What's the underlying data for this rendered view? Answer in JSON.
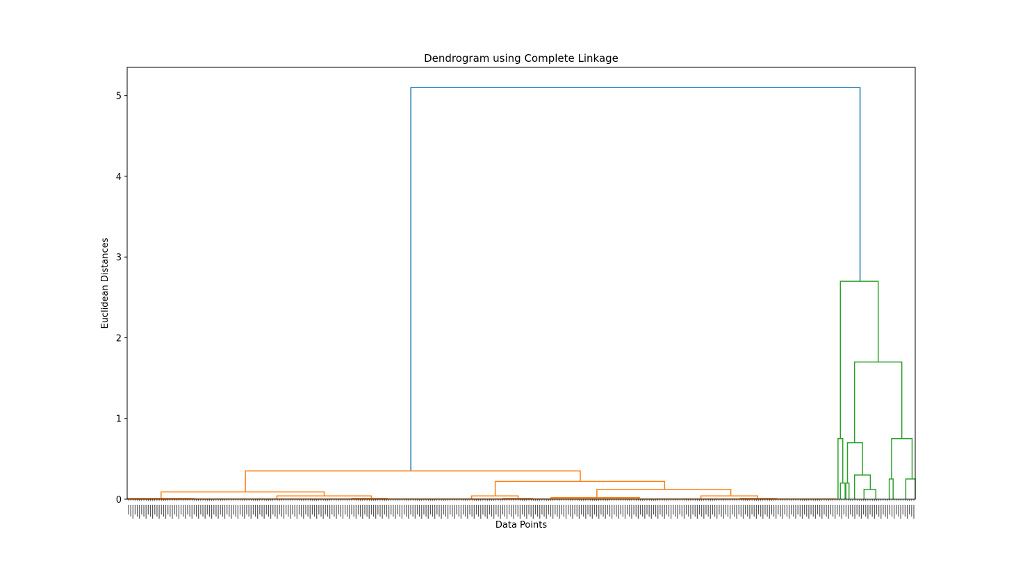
{
  "chart_data": {
    "type": "dendrogram",
    "title": "Dendrogram using Complete Linkage",
    "xlabel": "Data Points",
    "ylabel": "Euclidean Distances",
    "ylim": [
      0,
      5.35
    ],
    "yticks": [
      0,
      1,
      2,
      3,
      4,
      5
    ],
    "grid": false,
    "colors": {
      "above_threshold": "#1f77b4",
      "cluster_1": "#ff7f0e",
      "cluster_2": "#2ca02c"
    },
    "leaf_labels_legible": false,
    "links": [
      {
        "x": [
          0.36,
          0.36,
          0.93,
          0.93
        ],
        "y": [
          0.35,
          5.1,
          5.1,
          2.7
        ],
        "color": "#1f77b4"
      },
      {
        "x": [
          0.15,
          0.15,
          0.575,
          0.575
        ],
        "y": [
          0.09,
          0.35,
          0.35,
          0.22
        ],
        "color": "#ff7f0e"
      },
      {
        "x": [
          0.043,
          0.043,
          0.25,
          0.25
        ],
        "y": [
          0.01,
          0.09,
          0.09,
          0.04
        ],
        "color": "#ff7f0e"
      },
      {
        "x": [
          0.0,
          0.0,
          0.085,
          0.085
        ],
        "y": [
          0.0,
          0.01,
          0.01,
          0.0
        ],
        "color": "#ff7f0e"
      },
      {
        "x": [
          0.19,
          0.19,
          0.31,
          0.31
        ],
        "y": [
          0.0,
          0.04,
          0.04,
          0.01
        ],
        "color": "#ff7f0e"
      },
      {
        "x": [
          0.285,
          0.285,
          0.33,
          0.33
        ],
        "y": [
          0.0,
          0.01,
          0.01,
          0.0
        ],
        "color": "#ff7f0e"
      },
      {
        "x": [
          0.467,
          0.467,
          0.682,
          0.682
        ],
        "y": [
          0.04,
          0.22,
          0.22,
          0.12
        ],
        "color": "#ff7f0e"
      },
      {
        "x": [
          0.437,
          0.437,
          0.496,
          0.496
        ],
        "y": [
          0.0,
          0.04,
          0.04,
          0.0
        ],
        "color": "#ff7f0e"
      },
      {
        "x": [
          0.477,
          0.477,
          0.514,
          0.514
        ],
        "y": [
          0.0,
          0.01,
          0.01,
          0.0
        ],
        "color": "#ff7f0e"
      },
      {
        "x": [
          0.596,
          0.596,
          0.766,
          0.766
        ],
        "y": [
          0.02,
          0.12,
          0.12,
          0.04
        ],
        "color": "#ff7f0e"
      },
      {
        "x": [
          0.538,
          0.538,
          0.65,
          0.65
        ],
        "y": [
          0.0,
          0.02,
          0.02,
          0.0
        ],
        "color": "#ff7f0e"
      },
      {
        "x": [
          0.728,
          0.728,
          0.8,
          0.8
        ],
        "y": [
          0.0,
          0.04,
          0.04,
          0.01
        ],
        "color": "#ff7f0e"
      },
      {
        "x": [
          0.778,
          0.778,
          0.824,
          0.824
        ],
        "y": [
          0.0,
          0.01,
          0.01,
          0.0
        ],
        "color": "#ff7f0e"
      },
      {
        "x": [
          0.905,
          0.905,
          0.953,
          0.953
        ],
        "y": [
          0.75,
          2.7,
          2.7,
          1.7
        ],
        "color": "#2ca02c"
      },
      {
        "x": [
          0.902,
          0.902,
          0.908,
          0.908
        ],
        "y": [
          0.0,
          0.75,
          0.75,
          0.2
        ],
        "color": "#2ca02c"
      },
      {
        "x": [
          0.905,
          0.905,
          0.911,
          0.911
        ],
        "y": [
          0.0,
          0.2,
          0.2,
          0.0
        ],
        "color": "#2ca02c"
      },
      {
        "x": [
          0.923,
          0.923,
          0.983,
          0.983
        ],
        "y": [
          0.7,
          1.7,
          1.7,
          0.75
        ],
        "color": "#2ca02c"
      },
      {
        "x": [
          0.914,
          0.914,
          0.933,
          0.933
        ],
        "y": [
          0.2,
          0.7,
          0.7,
          0.3
        ],
        "color": "#2ca02c"
      },
      {
        "x": [
          0.912,
          0.912,
          0.916,
          0.916
        ],
        "y": [
          0.0,
          0.2,
          0.2,
          0.0
        ],
        "color": "#2ca02c"
      },
      {
        "x": [
          0.923,
          0.923,
          0.943,
          0.943
        ],
        "y": [
          0.0,
          0.3,
          0.3,
          0.12
        ],
        "color": "#2ca02c"
      },
      {
        "x": [
          0.935,
          0.935,
          0.95,
          0.95
        ],
        "y": [
          0.0,
          0.12,
          0.12,
          0.0
        ],
        "color": "#2ca02c"
      },
      {
        "x": [
          0.97,
          0.97,
          0.996,
          0.996
        ],
        "y": [
          0.25,
          0.75,
          0.75,
          0.25
        ],
        "color": "#2ca02c"
      },
      {
        "x": [
          0.967,
          0.967,
          0.972,
          0.972
        ],
        "y": [
          0.0,
          0.25,
          0.25,
          0.0
        ],
        "color": "#2ca02c"
      },
      {
        "x": [
          0.988,
          0.988,
          1.0,
          1.0
        ],
        "y": [
          0.0,
          0.25,
          0.25,
          0.0
        ],
        "color": "#2ca02c"
      }
    ]
  }
}
